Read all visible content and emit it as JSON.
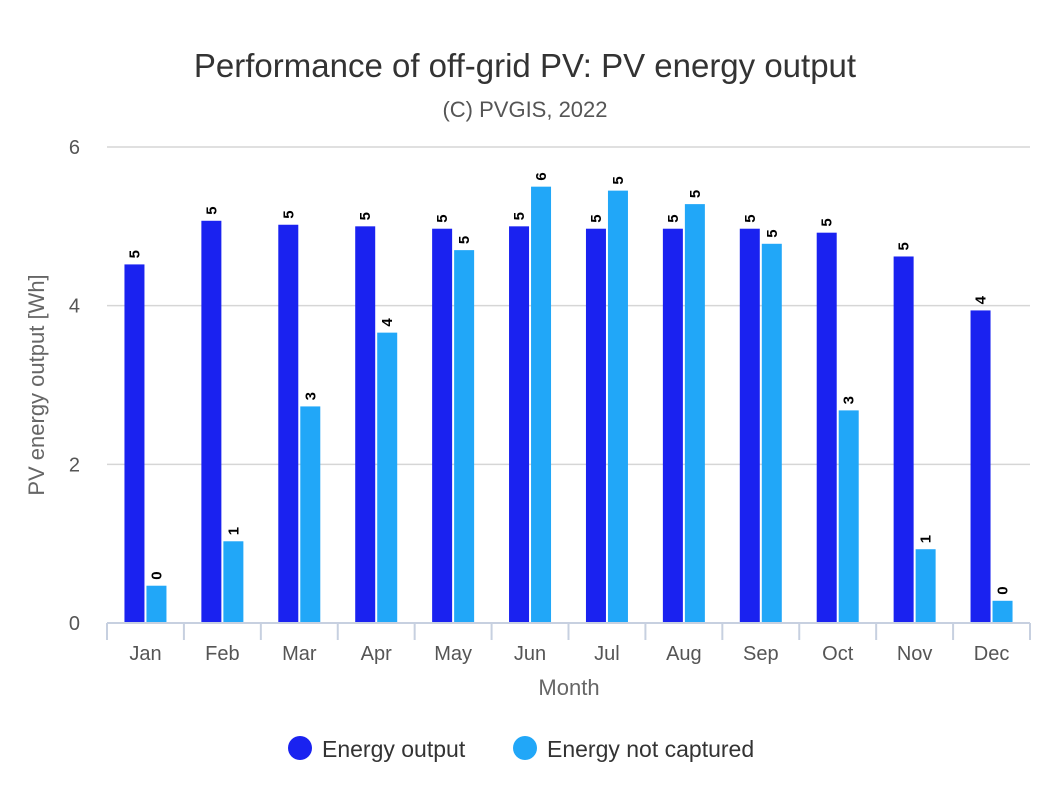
{
  "chart_data": {
    "type": "bar",
    "title": "Performance of off-grid PV: PV energy output",
    "subtitle": "(C) PVGIS, 2022",
    "xlabel": "Month",
    "ylabel": "PV energy output [Wh]",
    "ylim": [
      0,
      6
    ],
    "yticks": [
      0,
      2,
      4,
      6
    ],
    "grid": true,
    "legend_position": "bottom-center",
    "categories": [
      "Jan",
      "Feb",
      "Mar",
      "Apr",
      "May",
      "Jun",
      "Jul",
      "Aug",
      "Sep",
      "Oct",
      "Nov",
      "Dec"
    ],
    "series": [
      {
        "name": "Energy output",
        "color": "#1a22f0",
        "values": [
          4.52,
          5.07,
          5.02,
          5.0,
          4.97,
          5.0,
          4.97,
          4.97,
          4.97,
          4.92,
          4.62,
          3.94
        ],
        "labels": [
          "5",
          "5",
          "5",
          "5",
          "5",
          "5",
          "5",
          "5",
          "5",
          "5",
          "5",
          "4"
        ]
      },
      {
        "name": "Energy not captured",
        "color": "#21a7f8",
        "values": [
          0.47,
          1.03,
          2.73,
          3.66,
          4.7,
          5.5,
          5.45,
          5.28,
          4.78,
          2.68,
          0.93,
          0.28
        ],
        "labels": [
          "0",
          "1",
          "3",
          "4",
          "5",
          "6",
          "5",
          "5",
          "5",
          "3",
          "1",
          "0"
        ]
      }
    ]
  }
}
